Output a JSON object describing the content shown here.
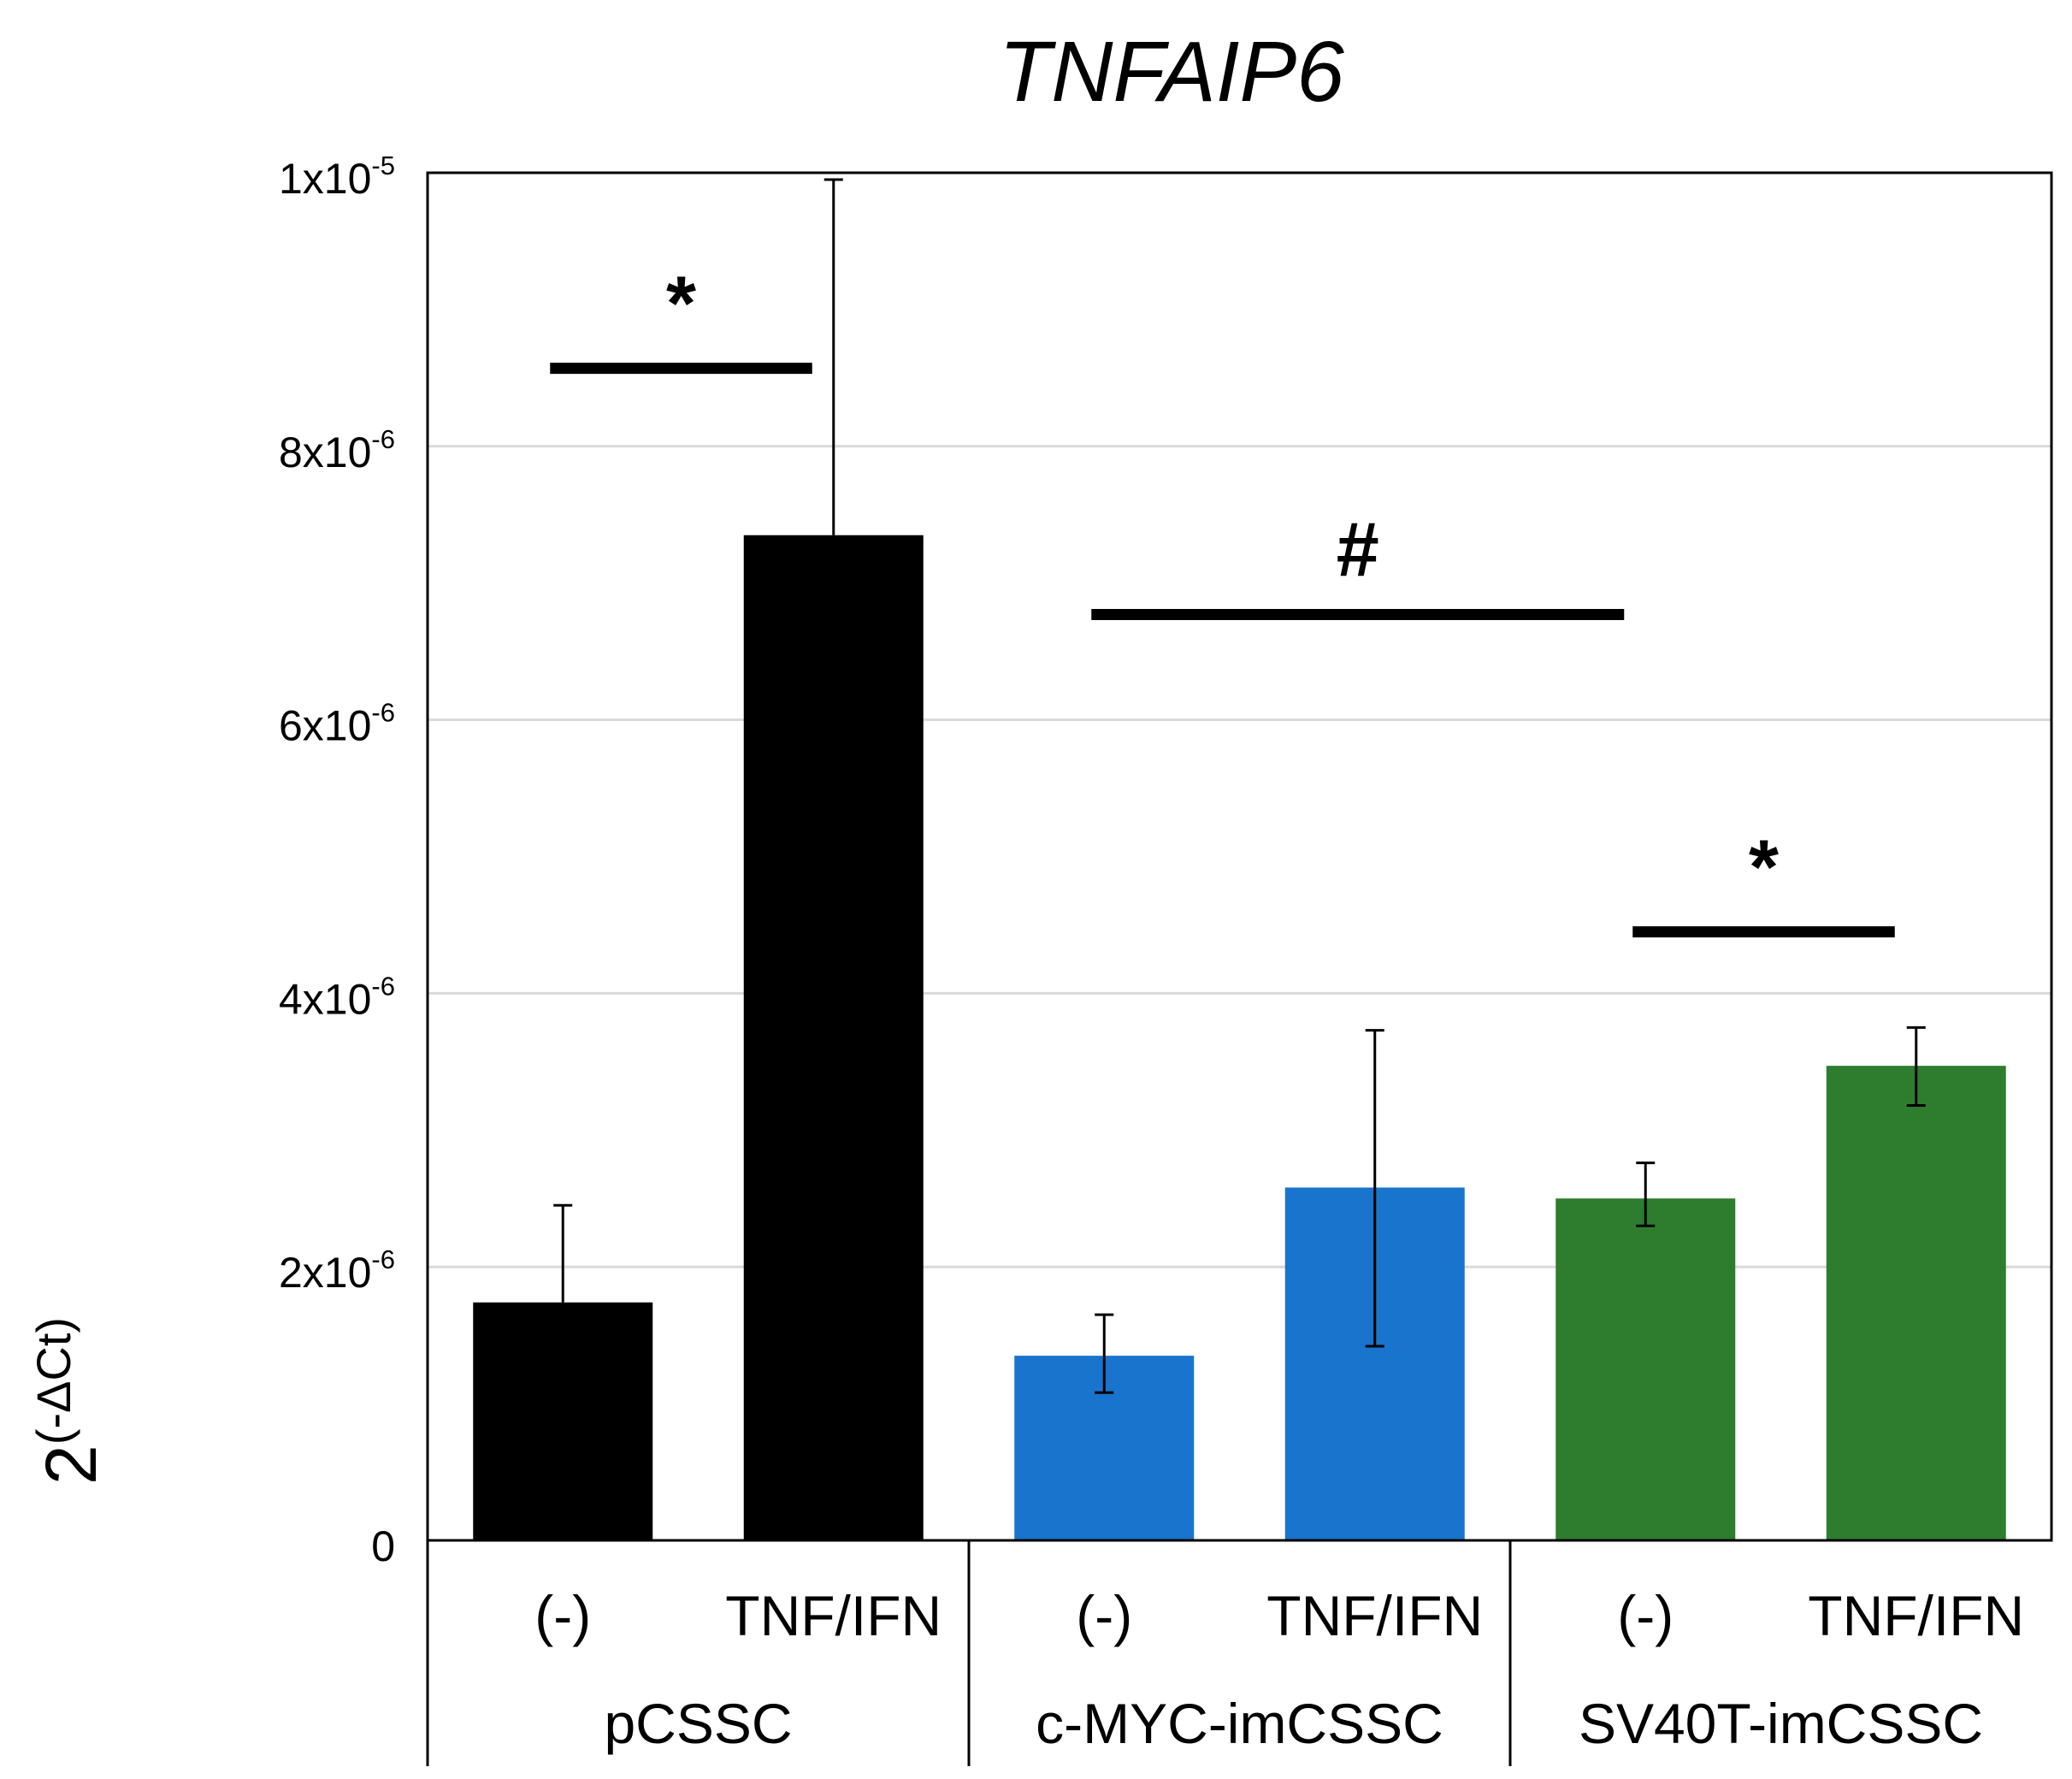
{
  "chart_data": {
    "type": "bar",
    "title": "TNFAIP6",
    "ylabel": {
      "base": "2",
      "superscript": "(-ΔCt)"
    },
    "xlabel": "",
    "ylim": [
      0,
      1e-05
    ],
    "grid": true,
    "legend": "none",
    "yticks": [
      {
        "value": 0,
        "label": "0",
        "exponent": ""
      },
      {
        "value": 2e-06,
        "label": "2x10",
        "exponent": "-6"
      },
      {
        "value": 4e-06,
        "label": "4x10",
        "exponent": "-6"
      },
      {
        "value": 6e-06,
        "label": "6x10",
        "exponent": "-6"
      },
      {
        "value": 8e-06,
        "label": "8x10",
        "exponent": "-6"
      },
      {
        "value": 1e-05,
        "label": "1x10",
        "exponent": "-5"
      }
    ],
    "groups": [
      {
        "name": "pCSSC",
        "color": "#000000",
        "bars": [
          {
            "condition": "(-)",
            "value": 1.74e-06,
            "error_upper": 2.45e-06,
            "error_lower": 1.74e-06
          },
          {
            "condition": "TNF/IFN",
            "value": 7.35e-06,
            "error_upper": 9.95e-06,
            "error_lower": 7.35e-06
          }
        ]
      },
      {
        "name": "c-MYC-imCSSC",
        "color": "#1874CD",
        "bars": [
          {
            "condition": "(-)",
            "value": 1.35e-06,
            "error_upper": 1.65e-06,
            "error_lower": 1.08e-06
          },
          {
            "condition": "TNF/IFN",
            "value": 2.58e-06,
            "error_upper": 3.73e-06,
            "error_lower": 1.42e-06
          }
        ]
      },
      {
        "name": "SV40T-imCSSC",
        "color": "#2E7D2E",
        "bars": [
          {
            "condition": "(-)",
            "value": 2.5e-06,
            "error_upper": 2.76e-06,
            "error_lower": 2.3e-06
          },
          {
            "condition": "TNF/IFN",
            "value": 3.47e-06,
            "error_upper": 3.75e-06,
            "error_lower": 3.18e-06
          }
        ]
      }
    ],
    "annotations": [
      {
        "symbol": "*",
        "from_bar": 0,
        "to_bar": 1,
        "line_value": 8.57e-06
      },
      {
        "symbol": "#",
        "from_bar": 2,
        "to_bar": 4,
        "line_value": 6.77e-06
      },
      {
        "symbol": "*",
        "from_bar": 4,
        "to_bar": 5,
        "line_value": 4.45e-06
      }
    ]
  }
}
